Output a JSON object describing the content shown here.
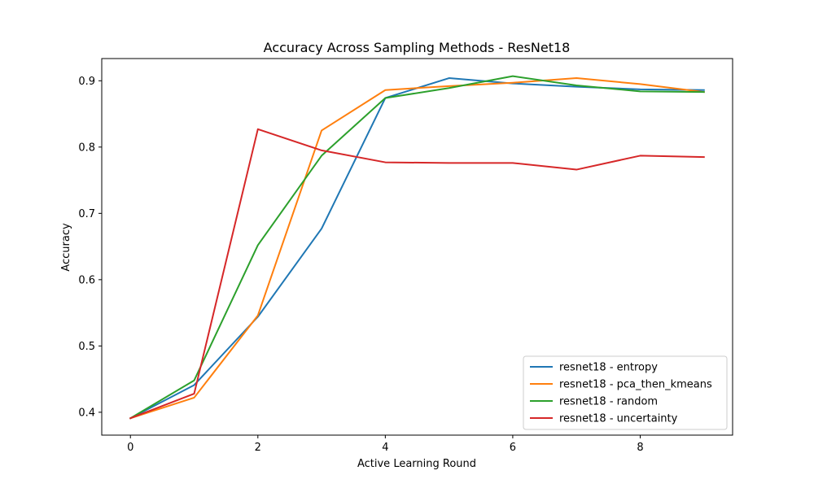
{
  "chart_data": {
    "type": "line",
    "title": "Accuracy Across Sampling Methods - ResNet18",
    "xlabel": "Active Learning Round",
    "ylabel": "Accuracy",
    "xlim": [
      -0.45,
      9.45
    ],
    "ylim": [
      0.3655,
      0.9335
    ],
    "xticks": [
      0,
      2,
      4,
      6,
      8
    ],
    "yticks": [
      0.4,
      0.5,
      0.6,
      0.7,
      0.8,
      0.9
    ],
    "xtick_labels": [
      "0",
      "2",
      "4",
      "6",
      "8"
    ],
    "ytick_labels": [
      "0.4",
      "0.5",
      "0.6",
      "0.7",
      "0.8",
      "0.9"
    ],
    "grid": false,
    "legend_position": "lower-right",
    "x": [
      0,
      1,
      2,
      3,
      4,
      5,
      6,
      7,
      8,
      9
    ],
    "series": [
      {
        "name": "resnet18 - entropy",
        "color": "#1f77b4",
        "values": [
          0.391,
          0.441,
          0.544,
          0.677,
          0.874,
          0.904,
          0.896,
          0.891,
          0.887,
          0.886
        ]
      },
      {
        "name": "resnet18 - pca_then_kmeans",
        "color": "#ff7f0e",
        "values": [
          0.391,
          0.422,
          0.546,
          0.825,
          0.886,
          0.892,
          0.897,
          0.904,
          0.895,
          0.883
        ]
      },
      {
        "name": "resnet18 - random",
        "color": "#2ca02c",
        "values": [
          0.391,
          0.448,
          0.652,
          0.787,
          0.874,
          0.889,
          0.907,
          0.893,
          0.884,
          0.883
        ]
      },
      {
        "name": "resnet18 - uncertainty",
        "color": "#d62728",
        "values": [
          0.391,
          0.428,
          0.827,
          0.795,
          0.777,
          0.776,
          0.776,
          0.766,
          0.787,
          0.785
        ]
      }
    ]
  }
}
